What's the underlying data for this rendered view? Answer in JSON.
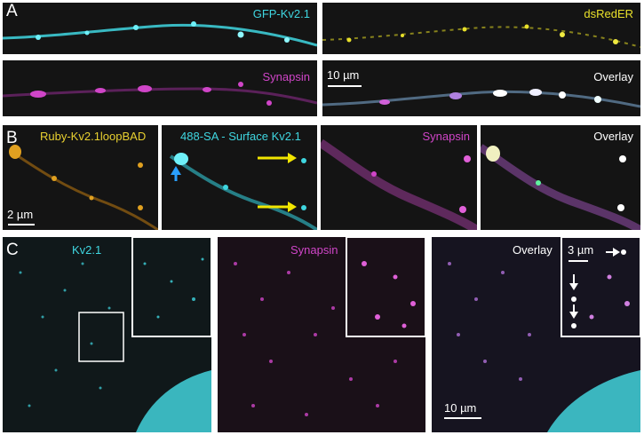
{
  "panel_letters": {
    "a": "A",
    "b": "B",
    "c": "C"
  },
  "row_a": {
    "gfp": "GFP-Kv2.1",
    "dsred": "dsRedER",
    "synapsin": "Synapsin",
    "overlay": "Overlay",
    "scale": "10 µm"
  },
  "row_b": {
    "ruby": "Ruby-Kv2.1loopBAD",
    "surface": "488-SA - Surface Kv2.1",
    "synapsin": "Synapsin",
    "overlay": "Overlay",
    "scale": "2 µm"
  },
  "row_c": {
    "kv": "Kv2.1",
    "synapsin": "Synapsin",
    "overlay": "Overlay",
    "scale_inset": "3 µm",
    "scale": "10 µm"
  },
  "colors": {
    "cyan": "#3fd6e0",
    "yellow": "#e8e02a",
    "magenta": "#d045c8",
    "orange": "#e0a020",
    "white": "#ffffff",
    "arrow_yellow": "#f2e600",
    "arrow_blue": "#2aa0ff"
  }
}
